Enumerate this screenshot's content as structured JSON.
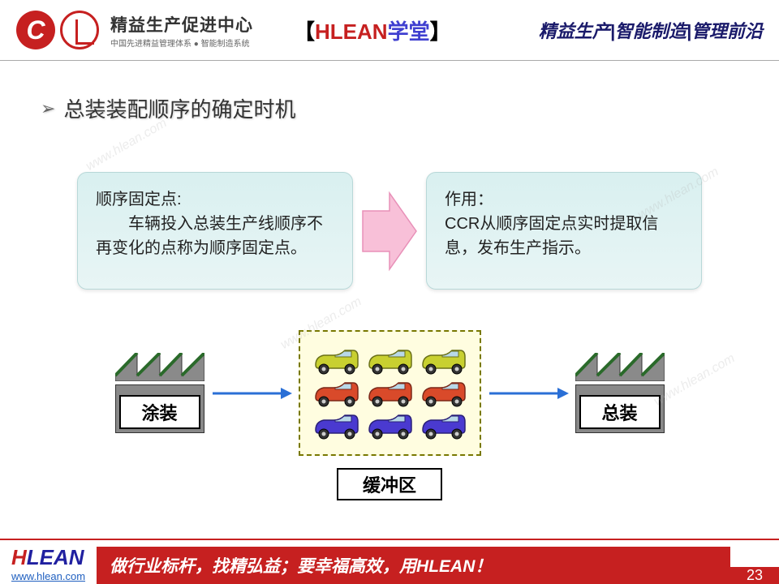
{
  "header": {
    "logo_main": "精益生产促进中心",
    "logo_sub": "中国先进精益管理体系 ● 智能制造系统",
    "title_bracket_l": "【",
    "title_red": "HLEAN",
    "title_purple": "学堂",
    "title_bracket_r": "】",
    "nav": "精益生产|智能制造|管理前沿"
  },
  "main": {
    "heading": "总装装配顺序的确定时机",
    "box1_title": "顺序固定点:",
    "box1_body": "　　车辆投入总装生产线顺序不再变化的点称为顺序固定点。",
    "box2_title": "作用：",
    "box2_body": "CCR从顺序固定点实时提取信息，发布生产指示。"
  },
  "diagram": {
    "factory1_label": "涂装",
    "buffer_label": "缓冲区",
    "factory2_label": "总装",
    "box_bg": "#fffde0",
    "box_border": "#787800",
    "arrow_color": "#2a6fd6",
    "factory_fill": "#888888",
    "factory_roof_fill": "#8a8a8a",
    "factory_roof_edge": "#2a6a2a",
    "car_rows": [
      {
        "color": "#c8d030",
        "stroke": "#6a7018"
      },
      {
        "color": "#d94a2a",
        "stroke": "#7a2818"
      },
      {
        "color": "#4a3ad0",
        "stroke": "#2a2078"
      }
    ]
  },
  "styling": {
    "info_box_bg_top": "#d9f0f0",
    "info_box_bg_bot": "#e8f5f5",
    "info_box_border": "#b8d8d8",
    "info_box_radius": 12,
    "big_arrow_fill": "#f8c0d8",
    "big_arrow_stroke": "#e890b8",
    "accent_red": "#c62020",
    "accent_blue": "#2020a0"
  },
  "footer": {
    "brand_h": "H",
    "brand_lean": "LEAN",
    "url": "www.hlean.com",
    "slogan": "做行业标杆，找精弘益；要幸福高效，用HLEAN！",
    "page": "23"
  }
}
